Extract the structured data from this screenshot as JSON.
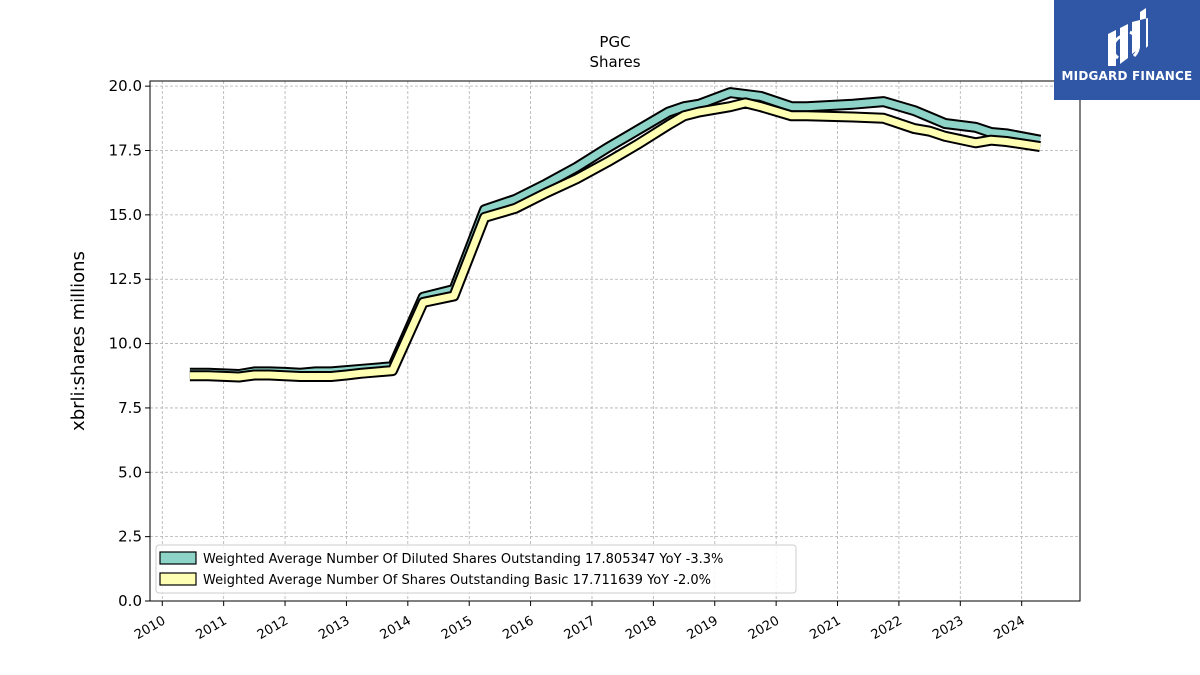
{
  "logo": {
    "text": "MIDGARD FINANCE"
  },
  "chart_data": {
    "type": "area",
    "title": "PGC",
    "subtitle": "Shares",
    "xlabel": "",
    "ylabel": "xbrli:shares millions",
    "xlim": [
      2009.8,
      2024.95
    ],
    "ylim": [
      0,
      20.2
    ],
    "x_ticks": [
      "2010",
      "2011",
      "2012",
      "2013",
      "2014",
      "2015",
      "2016",
      "2017",
      "2018",
      "2019",
      "2020",
      "2021",
      "2022",
      "2023",
      "2024"
    ],
    "y_ticks": [
      "0.0",
      "2.5",
      "5.0",
      "7.5",
      "10.0",
      "12.5",
      "15.0",
      "17.5",
      "20.0"
    ],
    "grid": true,
    "legend_position": "lower-left",
    "series": [
      {
        "name": "Weighted Average Number Of Diluted Shares Outstanding  17.805347 YoY -3.3%",
        "color": "#8dd3c7",
        "x": [
          2010.45,
          2010.75,
          2011.25,
          2011.5,
          2011.75,
          2012.0,
          2012.25,
          2012.5,
          2012.75,
          2013.0,
          2013.25,
          2013.75,
          2014.25,
          2014.75,
          2015.25,
          2015.75,
          2016.25,
          2016.75,
          2017.25,
          2017.5,
          2017.75,
          2018.25,
          2018.5,
          2018.75,
          2019.25,
          2019.75,
          2020.25,
          2020.5,
          2021.25,
          2021.75,
          2022.25,
          2022.5,
          2022.75,
          2023.25,
          2023.5,
          2023.75,
          2024.3
        ],
        "y": [
          8.85,
          8.85,
          8.8,
          8.9,
          8.9,
          8.88,
          8.85,
          8.9,
          8.9,
          8.95,
          9.0,
          9.1,
          11.8,
          12.1,
          15.2,
          15.6,
          16.2,
          16.85,
          17.6,
          17.95,
          18.3,
          19.0,
          19.2,
          19.3,
          19.75,
          19.6,
          19.2,
          19.2,
          19.3,
          19.4,
          19.05,
          18.8,
          18.55,
          18.4,
          18.2,
          18.15,
          17.9
        ]
      },
      {
        "name": "Weighted Average Number Of Shares Outstanding Basic  17.711639 YoY -2.0%",
        "color": "#ffffb3",
        "x": [
          2010.45,
          2010.75,
          2011.25,
          2011.5,
          2011.75,
          2012.0,
          2012.25,
          2012.5,
          2012.75,
          2013.0,
          2013.25,
          2013.75,
          2014.25,
          2014.75,
          2015.25,
          2015.75,
          2016.25,
          2016.75,
          2017.25,
          2017.5,
          2017.75,
          2018.25,
          2018.5,
          2018.75,
          2019.25,
          2019.5,
          2019.75,
          2020.25,
          2020.5,
          2021.25,
          2021.75,
          2022.25,
          2022.5,
          2022.75,
          2023.25,
          2023.5,
          2023.75,
          2024.3
        ],
        "y": [
          8.75,
          8.75,
          8.7,
          8.78,
          8.78,
          8.75,
          8.72,
          8.72,
          8.72,
          8.78,
          8.85,
          8.95,
          11.6,
          11.85,
          14.9,
          15.25,
          15.85,
          16.4,
          17.05,
          17.4,
          17.75,
          18.5,
          18.85,
          19.0,
          19.2,
          19.35,
          19.2,
          18.85,
          18.85,
          18.8,
          18.75,
          18.35,
          18.25,
          18.05,
          17.8,
          17.9,
          17.85,
          17.65
        ]
      }
    ]
  }
}
